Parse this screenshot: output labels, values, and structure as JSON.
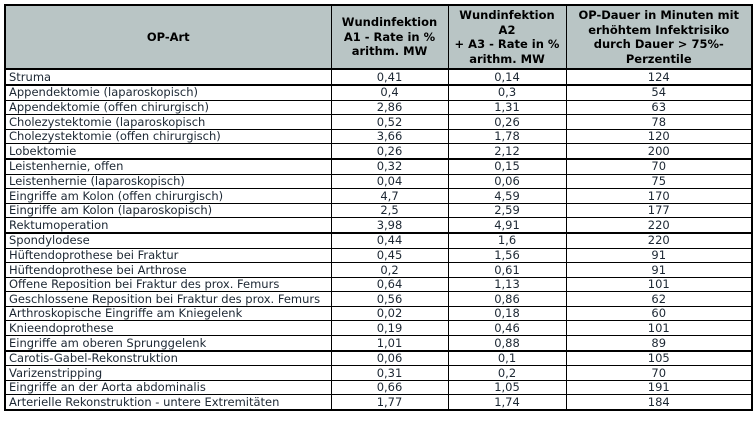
{
  "table": {
    "colors": {
      "header_bg": "#b9c5c5",
      "body_text": "#1c2733",
      "border": "#000000"
    },
    "header": {
      "op_art": "OP-Art",
      "a1": "Wundinfektion\nA1 - Rate in %\narithm. MW",
      "a2a3": "Wundinfektion A2\n+ A3 - Rate in %\narithm. MW",
      "dauer": "OP-Dauer in Minuten mit\nerhöhtem Infektrisiko\ndurch Dauer > 75%-\nPerzentile"
    },
    "rows": [
      {
        "op_art": "Struma",
        "a1": "0,41",
        "a2a3": "0,14",
        "dauer": "124",
        "group_end": true
      },
      {
        "op_art": "Appendektomie (laparoskopisch)",
        "a1": "0,4",
        "a2a3": "0,3",
        "dauer": "54",
        "group_end": false
      },
      {
        "op_art": "Appendektomie (offen chirurgisch)",
        "a1": "2,86",
        "a2a3": "1,31",
        "dauer": "63",
        "group_end": false
      },
      {
        "op_art": "Cholezystektomie (laparoskopisch",
        "a1": "0,52",
        "a2a3": "0,26",
        "dauer": "78",
        "group_end": false
      },
      {
        "op_art": "Cholezystektomie (offen chirurgisch)",
        "a1": "3,66",
        "a2a3": "1,78",
        "dauer": "120",
        "group_end": false
      },
      {
        "op_art": "Lobektomie",
        "a1": "0,26",
        "a2a3": "2,12",
        "dauer": "200",
        "group_end": true
      },
      {
        "op_art": "Leistenhernie, offen",
        "a1": "0,32",
        "a2a3": "0,15",
        "dauer": "70",
        "group_end": false
      },
      {
        "op_art": "Leistenhernie (laparoskopisch)",
        "a1": "0,04",
        "a2a3": "0,06",
        "dauer": "75",
        "group_end": false
      },
      {
        "op_art": "Eingriffe am Kolon (offen chirurgisch)",
        "a1": "4,7",
        "a2a3": "4,59",
        "dauer": "170",
        "group_end": false
      },
      {
        "op_art": "Eingriffe am Kolon (laparoskopisch)",
        "a1": "2,5",
        "a2a3": "2,59",
        "dauer": "177",
        "group_end": false
      },
      {
        "op_art": "Rektumoperation",
        "a1": "3,98",
        "a2a3": "4,91",
        "dauer": "220",
        "group_end": true
      },
      {
        "op_art": "Spondylodese",
        "a1": "0,44",
        "a2a3": "1,6",
        "dauer": "220",
        "group_end": false
      },
      {
        "op_art": "Hüftendoprothese bei Fraktur",
        "a1": "0,45",
        "a2a3": "1,56",
        "dauer": "91",
        "group_end": false
      },
      {
        "op_art": "Hüftendoprothese bei Arthrose",
        "a1": "0,2",
        "a2a3": "0,61",
        "dauer": "91",
        "group_end": false
      },
      {
        "op_art": "Offene Reposition bei Fraktur des prox. Femurs",
        "a1": "0,64",
        "a2a3": "1,13",
        "dauer": "101",
        "group_end": false
      },
      {
        "op_art": "Geschlossene Reposition bei Fraktur des prox. Femurs",
        "a1": "0,56",
        "a2a3": "0,86",
        "dauer": "62",
        "group_end": false
      },
      {
        "op_art": "Arthroskopische Eingriffe am Kniegelenk",
        "a1": "0,02",
        "a2a3": "0,18",
        "dauer": "60",
        "group_end": false
      },
      {
        "op_art": "Knieendoprothese",
        "a1": "0,19",
        "a2a3": "0,46",
        "dauer": "101",
        "group_end": false
      },
      {
        "op_art": "Eingriffe am oberen Sprunggelenk",
        "a1": "1,01",
        "a2a3": "0,88",
        "dauer": "89",
        "group_end": true
      },
      {
        "op_art": "Carotis-Gabel-Rekonstruktion",
        "a1": "0,06",
        "a2a3": "0,1",
        "dauer": "105",
        "group_end": false
      },
      {
        "op_art": "Varizenstripping",
        "a1": "0,31",
        "a2a3": "0,2",
        "dauer": "70",
        "group_end": false
      },
      {
        "op_art": "Eingriffe an der Aorta abdominalis",
        "a1": "0,66",
        "a2a3": "1,05",
        "dauer": "191",
        "group_end": false
      },
      {
        "op_art": "Arterielle Rekonstruktion - untere Extremitäten",
        "a1": "1,77",
        "a2a3": "1,74",
        "dauer": "184",
        "group_end": false
      }
    ]
  }
}
